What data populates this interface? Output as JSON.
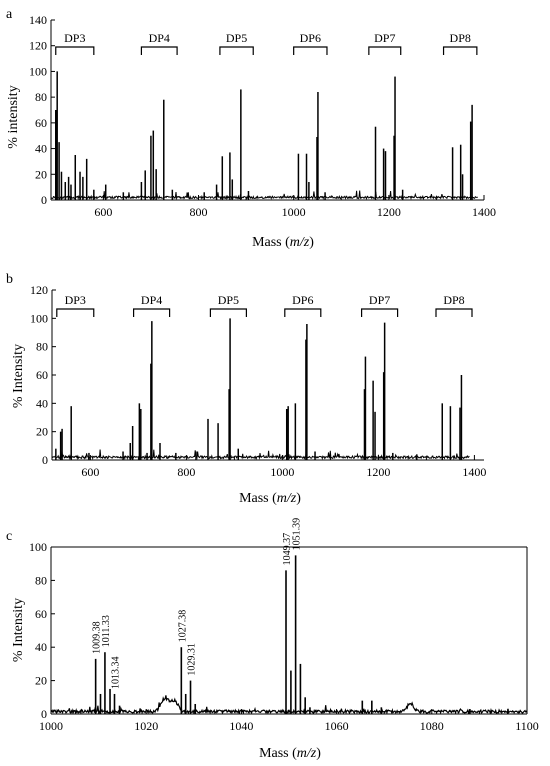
{
  "chart_data": [
    {
      "panel": "a",
      "type": "line",
      "xlabel": "Mass",
      "xlabel_unit": "m/z",
      "ylabel": "% intensity",
      "xlim": [
        490,
        1400
      ],
      "ylim": [
        0,
        140
      ],
      "x_ticks": [
        600,
        800,
        1000,
        1200,
        1400
      ],
      "y_ticks": [
        0,
        20,
        40,
        60,
        80,
        100,
        120,
        140
      ],
      "groups": [
        {
          "label": "DP3",
          "from": 500,
          "to": 580
        },
        {
          "label": "DP4",
          "from": 680,
          "to": 755
        },
        {
          "label": "DP5",
          "from": 845,
          "to": 915
        },
        {
          "label": "DP6",
          "from": 1000,
          "to": 1070
        },
        {
          "label": "DP7",
          "from": 1158,
          "to": 1225
        },
        {
          "label": "DP8",
          "from": 1315,
          "to": 1385
        }
      ],
      "peaks": [
        {
          "x": 500,
          "y": 70
        },
        {
          "x": 503,
          "y": 100
        },
        {
          "x": 507,
          "y": 45
        },
        {
          "x": 512,
          "y": 22
        },
        {
          "x": 520,
          "y": 14
        },
        {
          "x": 527,
          "y": 18
        },
        {
          "x": 532,
          "y": 12
        },
        {
          "x": 541,
          "y": 35
        },
        {
          "x": 551,
          "y": 22
        },
        {
          "x": 557,
          "y": 18
        },
        {
          "x": 565,
          "y": 32
        },
        {
          "x": 580,
          "y": 8
        },
        {
          "x": 605,
          "y": 12
        },
        {
          "x": 642,
          "y": 6
        },
        {
          "x": 680,
          "y": 14
        },
        {
          "x": 688,
          "y": 23
        },
        {
          "x": 700,
          "y": 50
        },
        {
          "x": 705,
          "y": 54
        },
        {
          "x": 711,
          "y": 24
        },
        {
          "x": 727,
          "y": 78
        },
        {
          "x": 745,
          "y": 8
        },
        {
          "x": 812,
          "y": 6
        },
        {
          "x": 838,
          "y": 12
        },
        {
          "x": 850,
          "y": 34
        },
        {
          "x": 866,
          "y": 37
        },
        {
          "x": 871,
          "y": 16
        },
        {
          "x": 889,
          "y": 86
        },
        {
          "x": 905,
          "y": 7
        },
        {
          "x": 1010,
          "y": 36
        },
        {
          "x": 1027,
          "y": 36
        },
        {
          "x": 1032,
          "y": 14
        },
        {
          "x": 1049,
          "y": 49
        },
        {
          "x": 1051,
          "y": 84
        },
        {
          "x": 1066,
          "y": 6
        },
        {
          "x": 1172,
          "y": 57
        },
        {
          "x": 1189,
          "y": 40
        },
        {
          "x": 1193,
          "y": 38
        },
        {
          "x": 1211,
          "y": 50
        },
        {
          "x": 1213,
          "y": 96
        },
        {
          "x": 1229,
          "y": 8
        },
        {
          "x": 1334,
          "y": 41
        },
        {
          "x": 1351,
          "y": 43
        },
        {
          "x": 1355,
          "y": 20
        },
        {
          "x": 1372,
          "y": 61
        },
        {
          "x": 1375,
          "y": 74
        }
      ]
    },
    {
      "panel": "b",
      "type": "line",
      "xlabel": "Mass",
      "xlabel_unit": "m/z",
      "ylabel": "% Intensity",
      "xlim": [
        520,
        1420
      ],
      "ylim": [
        0,
        120
      ],
      "x_ticks": [
        600,
        800,
        1000,
        1200,
        1400
      ],
      "y_ticks": [
        0,
        20,
        40,
        60,
        80,
        100,
        120
      ],
      "groups": [
        {
          "label": "DP3",
          "from": 530,
          "to": 607
        },
        {
          "label": "DP4",
          "from": 690,
          "to": 765
        },
        {
          "label": "DP5",
          "from": 850,
          "to": 925
        },
        {
          "label": "DP6",
          "from": 1005,
          "to": 1080
        },
        {
          "label": "DP7",
          "from": 1165,
          "to": 1240
        },
        {
          "label": "DP8",
          "from": 1320,
          "to": 1395
        }
      ],
      "peaks": [
        {
          "x": 528,
          "y": 8
        },
        {
          "x": 538,
          "y": 20
        },
        {
          "x": 541,
          "y": 22
        },
        {
          "x": 560,
          "y": 38
        },
        {
          "x": 597,
          "y": 5
        },
        {
          "x": 668,
          "y": 6
        },
        {
          "x": 683,
          "y": 12
        },
        {
          "x": 688,
          "y": 24
        },
        {
          "x": 702,
          "y": 40
        },
        {
          "x": 705,
          "y": 36
        },
        {
          "x": 718,
          "y": 5
        },
        {
          "x": 726,
          "y": 68
        },
        {
          "x": 728,
          "y": 98
        },
        {
          "x": 745,
          "y": 12
        },
        {
          "x": 778,
          "y": 5
        },
        {
          "x": 820,
          "y": 6
        },
        {
          "x": 845,
          "y": 29
        },
        {
          "x": 866,
          "y": 26
        },
        {
          "x": 889,
          "y": 50
        },
        {
          "x": 891,
          "y": 100
        },
        {
          "x": 908,
          "y": 8
        },
        {
          "x": 1009,
          "y": 36
        },
        {
          "x": 1012,
          "y": 38
        },
        {
          "x": 1027,
          "y": 40
        },
        {
          "x": 1049,
          "y": 85
        },
        {
          "x": 1051,
          "y": 96
        },
        {
          "x": 1068,
          "y": 6
        },
        {
          "x": 1171,
          "y": 50
        },
        {
          "x": 1173,
          "y": 73
        },
        {
          "x": 1189,
          "y": 56
        },
        {
          "x": 1193,
          "y": 34
        },
        {
          "x": 1211,
          "y": 62
        },
        {
          "x": 1213,
          "y": 97
        },
        {
          "x": 1230,
          "y": 5
        },
        {
          "x": 1280,
          "y": 4
        },
        {
          "x": 1333,
          "y": 40
        },
        {
          "x": 1350,
          "y": 38
        },
        {
          "x": 1370,
          "y": 37
        },
        {
          "x": 1373,
          "y": 60
        }
      ]
    },
    {
      "panel": "c",
      "type": "line",
      "xlabel": "Mass",
      "xlabel_unit": "m/z",
      "ylabel": "% Intensity",
      "xlim": [
        1000,
        1100
      ],
      "ylim": [
        0,
        100
      ],
      "x_ticks": [
        1000,
        1020,
        1040,
        1060,
        1080,
        1100
      ],
      "y_ticks": [
        0,
        20,
        40,
        60,
        80,
        100
      ],
      "peak_labels": [
        {
          "text": "1009.38",
          "x": 1009.38,
          "y": 33
        },
        {
          "text": "1011.33",
          "x": 1011.33,
          "y": 37
        },
        {
          "text": "1013.34",
          "x": 1013.34,
          "y": 12
        },
        {
          "text": "1027.38",
          "x": 1027.38,
          "y": 40
        },
        {
          "text": "1029.31",
          "x": 1029.31,
          "y": 20
        },
        {
          "text": "1049.37",
          "x": 1049.37,
          "y": 86
        },
        {
          "text": "1051.39",
          "x": 1051.39,
          "y": 95
        }
      ],
      "peaks": [
        {
          "x": 1009.38,
          "y": 33
        },
        {
          "x": 1010.4,
          "y": 12
        },
        {
          "x": 1011.33,
          "y": 37
        },
        {
          "x": 1012.4,
          "y": 15
        },
        {
          "x": 1013.34,
          "y": 12
        },
        {
          "x": 1014.4,
          "y": 5
        },
        {
          "x": 1027.38,
          "y": 40
        },
        {
          "x": 1028.3,
          "y": 12
        },
        {
          "x": 1029.31,
          "y": 20
        },
        {
          "x": 1030.3,
          "y": 6
        },
        {
          "x": 1049.37,
          "y": 86
        },
        {
          "x": 1050.4,
          "y": 26
        },
        {
          "x": 1051.39,
          "y": 95
        },
        {
          "x": 1052.4,
          "y": 30
        },
        {
          "x": 1053.4,
          "y": 10
        },
        {
          "x": 1054.4,
          "y": 4
        },
        {
          "x": 1065.4,
          "y": 8
        },
        {
          "x": 1067.4,
          "y": 8
        },
        {
          "x": 1069.4,
          "y": 4
        },
        {
          "x": 1088,
          "y": 3
        },
        {
          "x": 1096,
          "y": 3
        }
      ],
      "humps": [
        {
          "center": 1024,
          "height": 8,
          "width": 1.2
        },
        {
          "center": 1026,
          "height": 6,
          "width": 1.0
        },
        {
          "center": 1075.5,
          "height": 5,
          "width": 0.9
        }
      ]
    }
  ]
}
